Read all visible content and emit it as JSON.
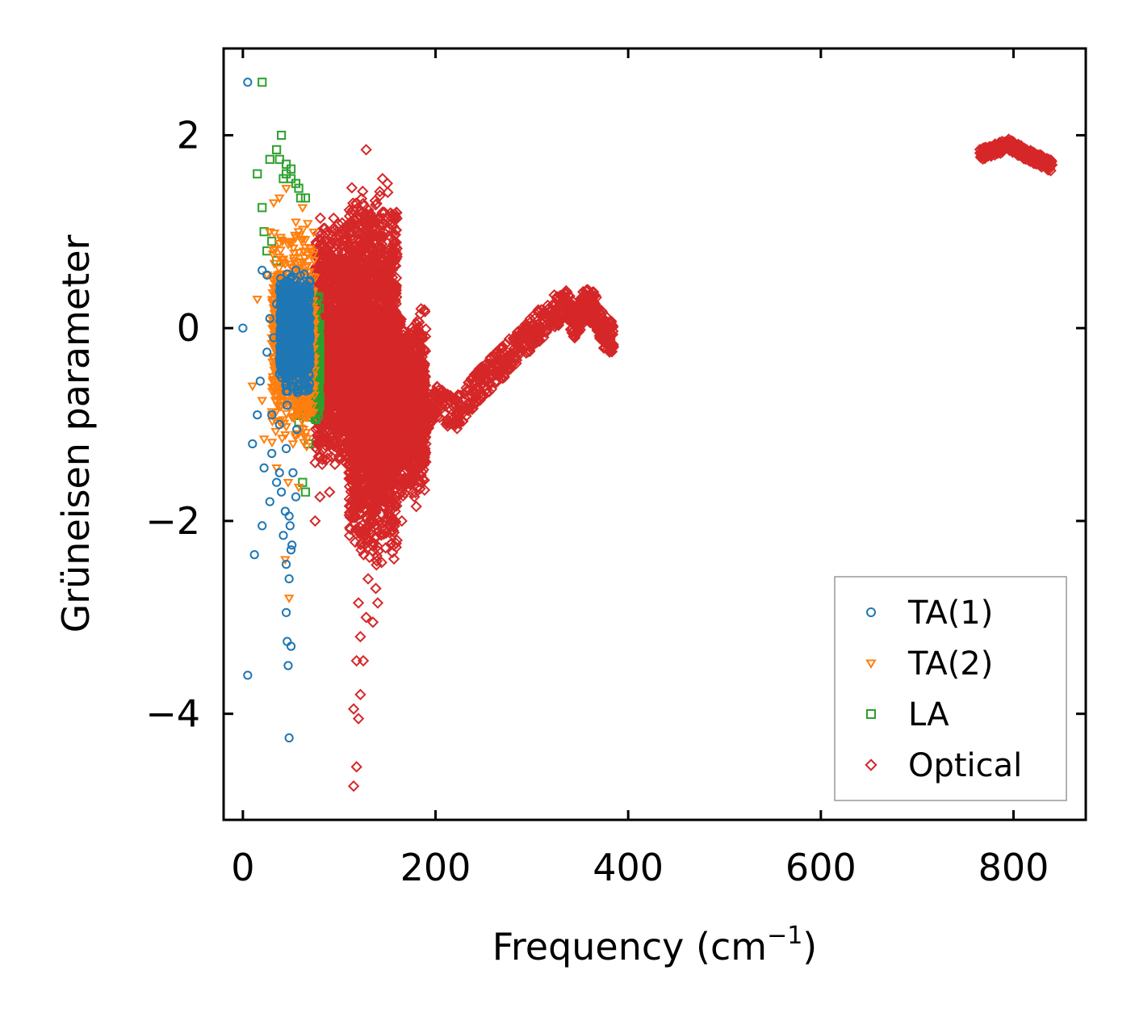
{
  "chart_data": {
    "type": "scatter",
    "title": "",
    "xlabel": "Frequency (cm",
    "xlabel_sup": "−1",
    "xlabel_close": ")",
    "ylabel": "Grüneisen parameter",
    "xlim": [
      -20,
      875
    ],
    "ylim": [
      -5.1,
      2.9
    ],
    "xticks": [
      0,
      200,
      400,
      600,
      800
    ],
    "xtick_labels": [
      "0",
      "200",
      "400",
      "600",
      "800"
    ],
    "yticks": [
      2,
      0,
      -2,
      -4
    ],
    "ytick_labels": [
      "2",
      "0",
      "−2",
      "−4"
    ],
    "grid": false,
    "legend_position": "lower-right",
    "series": [
      {
        "name": "TA(1)",
        "marker": "circle",
        "color": "#1f77b4",
        "points": [
          [
            0,
            0
          ],
          [
            5,
            2.55
          ],
          [
            5,
            -3.6
          ],
          [
            10,
            -1.2
          ],
          [
            12,
            -2.35
          ],
          [
            15,
            -0.9
          ],
          [
            18,
            -0.55
          ],
          [
            20,
            0.6
          ],
          [
            20,
            -2.05
          ],
          [
            22,
            -1.45
          ],
          [
            25,
            0.55
          ],
          [
            25,
            -0.25
          ],
          [
            28,
            -1.8
          ],
          [
            28,
            0.1
          ],
          [
            30,
            -0.9
          ],
          [
            30,
            -1.3
          ],
          [
            32,
            -0.1
          ],
          [
            35,
            -1.6
          ],
          [
            35,
            0.25
          ],
          [
            38,
            -1.0
          ],
          [
            40,
            -0.4
          ],
          [
            40,
            -1.7
          ],
          [
            42,
            -2.15
          ],
          [
            45,
            -2.45
          ],
          [
            45,
            -1.25
          ],
          [
            46,
            -3.25
          ],
          [
            47,
            -3.5
          ],
          [
            48,
            -4.25
          ],
          [
            48,
            -2.6
          ],
          [
            48,
            -1.95
          ],
          [
            50,
            -2.3
          ],
          [
            50,
            -3.3
          ],
          [
            52,
            -1.5
          ],
          [
            52,
            0.3
          ],
          [
            54,
            -0.2
          ],
          [
            55,
            -1.75
          ],
          [
            55,
            0.6
          ],
          [
            56,
            -1.05
          ],
          [
            58,
            0.0
          ],
          [
            60,
            -0.45
          ],
          [
            45,
            -2.95
          ],
          [
            38,
            -1.5
          ],
          [
            42,
            0.1
          ],
          [
            46,
            -0.8
          ],
          [
            50,
            0.45
          ],
          [
            53,
            -0.6
          ],
          [
            57,
            0.2
          ],
          [
            44,
            -1.9
          ],
          [
            49,
            -2.05
          ],
          [
            51,
            -2.25
          ]
        ],
        "cluster": {
          "x": [
            38,
            70
          ],
          "y": [
            -0.7,
            0.6
          ],
          "count": 900
        }
      },
      {
        "name": "TA(2)",
        "marker": "triangle-down",
        "color": "#ff7f0e",
        "points": [
          [
            10,
            -0.6
          ],
          [
            15,
            0.3
          ],
          [
            20,
            -0.75
          ],
          [
            22,
            -1.15
          ],
          [
            25,
            0.55
          ],
          [
            28,
            1.0
          ],
          [
            30,
            0.05
          ],
          [
            32,
            1.3
          ],
          [
            35,
            -1.45
          ],
          [
            38,
            1.35
          ],
          [
            40,
            0.55
          ],
          [
            42,
            -0.95
          ],
          [
            44,
            -2.4
          ],
          [
            45,
            1.45
          ],
          [
            48,
            -2.8
          ],
          [
            50,
            0.9
          ],
          [
            52,
            -1.2
          ],
          [
            55,
            1.1
          ],
          [
            58,
            -1.65
          ],
          [
            60,
            0.2
          ],
          [
            62,
            1.25
          ],
          [
            65,
            -0.45
          ],
          [
            68,
            -0.9
          ],
          [
            70,
            0.35
          ],
          [
            36,
            -0.3
          ],
          [
            41,
            0.9
          ],
          [
            47,
            -1.6
          ],
          [
            53,
            0.7
          ],
          [
            57,
            -0.55
          ],
          [
            63,
            0.8
          ]
        ],
        "cluster": {
          "x": [
            30,
            75
          ],
          "y": [
            -1.3,
            1.1
          ],
          "count": 700
        }
      },
      {
        "name": "LA",
        "marker": "square",
        "color": "#2ca02c",
        "points": [
          [
            20,
            2.55
          ],
          [
            15,
            1.6
          ],
          [
            20,
            1.25
          ],
          [
            22,
            1.0
          ],
          [
            28,
            1.75
          ],
          [
            35,
            1.85
          ],
          [
            38,
            1.75
          ],
          [
            40,
            2.0
          ],
          [
            42,
            1.55
          ],
          [
            45,
            1.6
          ],
          [
            50,
            1.65
          ],
          [
            55,
            1.5
          ],
          [
            58,
            1.45
          ],
          [
            60,
            1.35
          ],
          [
            65,
            1.35
          ],
          [
            50,
            1.55
          ],
          [
            30,
            0.9
          ],
          [
            35,
            0.7
          ],
          [
            62,
            -1.6
          ],
          [
            65,
            -1.7
          ],
          [
            68,
            -1.2
          ],
          [
            25,
            0.8
          ],
          [
            45,
            1.7
          ],
          [
            40,
            0.4
          ]
        ],
        "cluster": {
          "x": [
            55,
            80
          ],
          "y": [
            -1.0,
            0.4
          ],
          "count": 600
        }
      },
      {
        "name": "Optical",
        "marker": "diamond",
        "color": "#d62728",
        "points": [
          [
            115,
            -4.75
          ],
          [
            118,
            -4.55
          ],
          [
            115,
            -3.95
          ],
          [
            120,
            -4.05
          ],
          [
            122,
            -3.8
          ],
          [
            125,
            -3.45
          ],
          [
            118,
            -3.45
          ],
          [
            122,
            -3.2
          ],
          [
            128,
            -3.0
          ],
          [
            120,
            -2.85
          ],
          [
            135,
            -3.05
          ],
          [
            138,
            -2.7
          ],
          [
            140,
            -2.85
          ],
          [
            130,
            -2.6
          ],
          [
            128,
            1.85
          ],
          [
            145,
            1.55
          ],
          [
            150,
            1.5
          ],
          [
            185,
            0.2
          ],
          [
            187,
            -0.1
          ],
          [
            188,
            -0.55
          ],
          [
            190,
            -1.2
          ],
          [
            185,
            -1.6
          ],
          [
            180,
            -1.85
          ],
          [
            160,
            -2.2
          ],
          [
            165,
            -2.0
          ],
          [
            75,
            -2.0
          ],
          [
            80,
            -1.75
          ],
          [
            90,
            -1.7
          ],
          [
            95,
            -1.2
          ],
          [
            100,
            -0.9
          ]
        ],
        "clusters": [
          {
            "x": [
              75,
              115
            ],
            "y": [
              -1.5,
              1.2
            ],
            "count": 1400
          },
          {
            "x": [
              110,
              160
            ],
            "y": [
              -2.5,
              1.5
            ],
            "count": 2800
          },
          {
            "x": [
              150,
              190
            ],
            "y": [
              -1.8,
              0.2
            ],
            "count": 1200
          }
        ],
        "band": [
          [
            185,
            -1.0
          ],
          [
            200,
            -0.75
          ],
          [
            220,
            -0.9
          ],
          [
            240,
            -0.65
          ],
          [
            260,
            -0.45
          ],
          [
            280,
            -0.25
          ],
          [
            300,
            -0.05
          ],
          [
            320,
            0.15
          ],
          [
            335,
            0.25
          ],
          [
            345,
            0.05
          ],
          [
            355,
            0.25
          ],
          [
            365,
            0.2
          ],
          [
            375,
            -0.05
          ],
          [
            385,
            -0.1
          ]
        ],
        "band_high": [
          [
            765,
            1.8
          ],
          [
            780,
            1.85
          ],
          [
            795,
            1.9
          ],
          [
            810,
            1.82
          ],
          [
            825,
            1.75
          ],
          [
            840,
            1.68
          ]
        ]
      }
    ]
  }
}
